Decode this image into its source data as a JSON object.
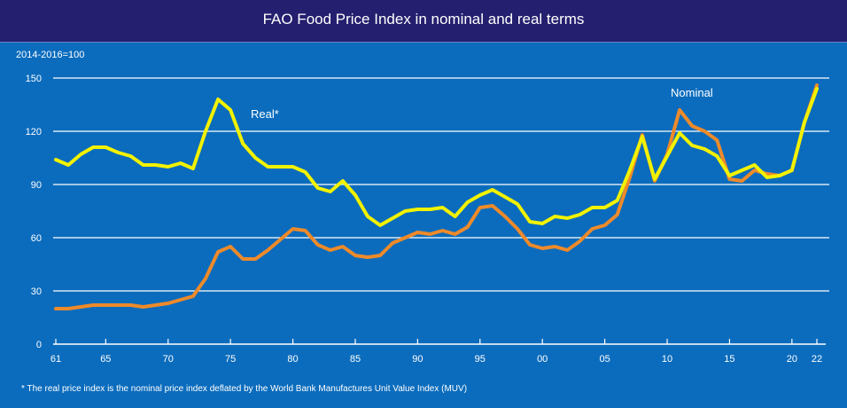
{
  "chart_data": {
    "type": "line",
    "title": "FAO Food Price Index in nominal and real terms",
    "ylabel": "2014-2016=100",
    "ylim": [
      0,
      150
    ],
    "yticks": [
      0,
      30,
      60,
      90,
      120,
      150
    ],
    "xlim": [
      1961,
      2022
    ],
    "xticks": [
      {
        "year": 1961,
        "label": "61"
      },
      {
        "year": 1965,
        "label": "65"
      },
      {
        "year": 1970,
        "label": "70"
      },
      {
        "year": 1975,
        "label": "75"
      },
      {
        "year": 1980,
        "label": "80"
      },
      {
        "year": 1985,
        "label": "85"
      },
      {
        "year": 1990,
        "label": "90"
      },
      {
        "year": 1995,
        "label": "95"
      },
      {
        "year": 2000,
        "label": "00"
      },
      {
        "year": 2005,
        "label": "05"
      },
      {
        "year": 2010,
        "label": "10"
      },
      {
        "year": 2015,
        "label": "15"
      },
      {
        "year": 2020,
        "label": "20"
      },
      {
        "year": 2022,
        "label": "22"
      }
    ],
    "grid": true,
    "x_start": 1961,
    "series": [
      {
        "name": "Real*",
        "color": "#f2f200",
        "values": [
          104,
          101,
          107,
          111,
          111,
          108,
          106,
          101,
          101,
          100,
          102,
          99,
          120,
          138,
          132,
          113,
          105,
          100,
          100,
          100,
          97,
          88,
          86,
          92,
          84,
          72,
          67,
          71,
          75,
          76,
          76,
          77,
          72,
          80,
          84,
          87,
          83,
          79,
          69,
          68,
          72,
          71,
          73,
          77,
          77,
          81,
          98,
          117,
          93,
          106,
          119,
          112,
          110,
          106,
          95,
          98,
          101,
          94,
          95,
          98,
          125,
          144
        ]
      },
      {
        "name": "Nominal",
        "color": "#ee8a2a",
        "values": [
          20,
          20,
          21,
          22,
          22,
          22,
          22,
          21,
          22,
          23,
          25,
          27,
          37,
          52,
          55,
          48,
          48,
          53,
          59,
          65,
          64,
          56,
          53,
          55,
          50,
          49,
          50,
          57,
          60,
          63,
          62,
          64,
          62,
          66,
          77,
          78,
          72,
          65,
          56,
          54,
          55,
          53,
          58,
          65,
          67,
          73,
          94,
          118,
          92,
          107,
          132,
          123,
          120,
          115,
          93,
          92,
          98,
          96,
          95,
          98,
          125,
          146
        ]
      }
    ],
    "footnote": "* The real price index is the nominal price index deflated by the World Bank Manufactures Unit Value Index (MUV)"
  }
}
